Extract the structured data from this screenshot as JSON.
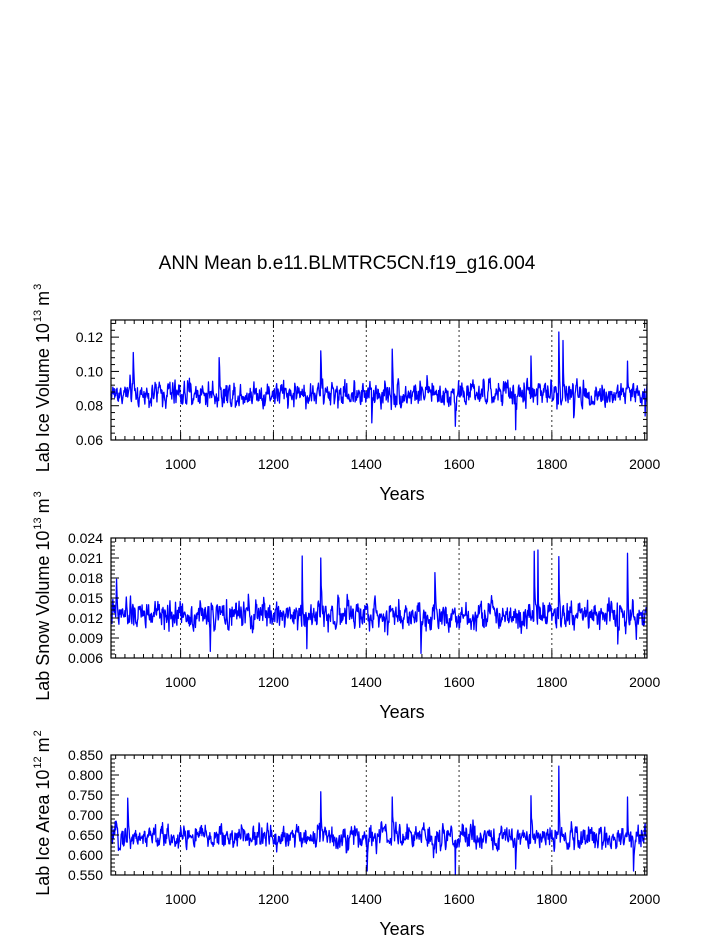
{
  "figure_title": "ANN Mean b.e11.BLMTRC5CN.f19_g16.004",
  "chart_data": [
    {
      "type": "line",
      "title": "",
      "xlabel": "Years",
      "ylabel_text": "Lab Ice Volume 10",
      "ylabel_exp": "13",
      "ylabel_unit": "m",
      "ylabel_unit_exp": "3",
      "xlim": [
        850,
        2005
      ],
      "ylim": [
        0.06,
        0.13
      ],
      "xticks": [
        1000,
        1200,
        1400,
        1600,
        1800,
        2000
      ],
      "xtick_labels": [
        "1000",
        "1200",
        "1400",
        "1600",
        "1800",
        "2000"
      ],
      "yticks": [
        0.06,
        0.08,
        0.1,
        0.12
      ],
      "ytick_labels": [
        "0.06",
        "0.08",
        "0.10",
        "0.12"
      ],
      "gridlines_x": [
        1000,
        1200,
        1400,
        1600,
        1800
      ],
      "series": [
        {
          "name": "Lab Ice Volume",
          "color": "#0000ff",
          "x_start": 850,
          "x_end": 2005,
          "summary": {
            "mean": 0.087,
            "typical_range": [
              0.075,
              0.1
            ]
          },
          "peaks": [
            [
              898,
              0.111
            ],
            [
              1083,
              0.108
            ],
            [
              1302,
              0.112
            ],
            [
              1456,
              0.113
            ],
            [
              1755,
              0.109
            ],
            [
              1815,
              0.123
            ],
            [
              1824,
              0.118
            ],
            [
              1963,
              0.106
            ]
          ],
          "troughs": [
            [
              1412,
              0.07
            ],
            [
              1592,
              0.068
            ],
            [
              1722,
              0.066
            ],
            [
              1847,
              0.073
            ],
            [
              2001,
              0.074
            ]
          ]
        }
      ]
    },
    {
      "type": "line",
      "title": "",
      "xlabel": "Years",
      "ylabel_text": "Lab Snow Volume 10",
      "ylabel_exp": "13",
      "ylabel_unit": "m",
      "ylabel_unit_exp": "3",
      "xlim": [
        850,
        2005
      ],
      "ylim": [
        0.006,
        0.024
      ],
      "xticks": [
        1000,
        1200,
        1400,
        1600,
        1800,
        2000
      ],
      "xtick_labels": [
        "1000",
        "1200",
        "1400",
        "1600",
        "1800",
        "2000"
      ],
      "yticks": [
        0.006,
        0.009,
        0.012,
        0.015,
        0.018,
        0.021,
        0.024
      ],
      "ytick_labels": [
        "0.006",
        "0.009",
        "0.012",
        "0.015",
        "0.018",
        "0.021",
        "0.024"
      ],
      "gridlines_x": [
        1000,
        1200,
        1400,
        1600,
        1800
      ],
      "series": [
        {
          "name": "Lab Snow Volume",
          "color": "#0000ff",
          "x_start": 850,
          "x_end": 2005,
          "summary": {
            "mean": 0.0125,
            "typical_range": [
              0.009,
              0.016
            ]
          },
          "peaks": [
            [
              862,
              0.0178
            ],
            [
              1262,
              0.0213
            ],
            [
              1302,
              0.021
            ],
            [
              1548,
              0.0188
            ],
            [
              1762,
              0.022
            ],
            [
              1770,
              0.0222
            ],
            [
              1815,
              0.0212
            ],
            [
              1963,
              0.0217
            ]
          ],
          "troughs": [
            [
              1064,
              0.007
            ],
            [
              1518,
              0.0067
            ],
            [
              1272,
              0.0074
            ],
            [
              1942,
              0.0081
            ]
          ]
        }
      ]
    },
    {
      "type": "line",
      "title": "",
      "xlabel": "Years",
      "ylabel_text": "Lab Ice Area 10",
      "ylabel_exp": "12",
      "ylabel_unit": "m",
      "ylabel_unit_exp": "2",
      "xlim": [
        850,
        2005
      ],
      "ylim": [
        0.55,
        0.85
      ],
      "xticks": [
        1000,
        1200,
        1400,
        1600,
        1800,
        2000
      ],
      "xtick_labels": [
        "1000",
        "1200",
        "1400",
        "1600",
        "1800",
        "2000"
      ],
      "yticks": [
        0.55,
        0.6,
        0.65,
        0.7,
        0.75,
        0.8,
        0.85
      ],
      "ytick_labels": [
        "0.550",
        "0.600",
        "0.650",
        "0.700",
        "0.750",
        "0.800",
        "0.850"
      ],
      "gridlines_x": [
        1000,
        1200,
        1400,
        1600,
        1800
      ],
      "series": [
        {
          "name": "Lab Ice Area",
          "color": "#0000ff",
          "x_start": 850,
          "x_end": 2005,
          "summary": {
            "mean": 0.645,
            "typical_range": [
              0.6,
              0.7
            ]
          },
          "peaks": [
            [
              886,
              0.742
            ],
            [
              1302,
              0.758
            ],
            [
              1456,
              0.745
            ],
            [
              1755,
              0.748
            ],
            [
              1815,
              0.822
            ],
            [
              1963,
              0.745
            ]
          ],
          "troughs": [
            [
              1402,
              0.56
            ],
            [
              1592,
              0.55
            ],
            [
              1722,
              0.565
            ],
            [
              1976,
              0.56
            ]
          ]
        }
      ]
    }
  ]
}
